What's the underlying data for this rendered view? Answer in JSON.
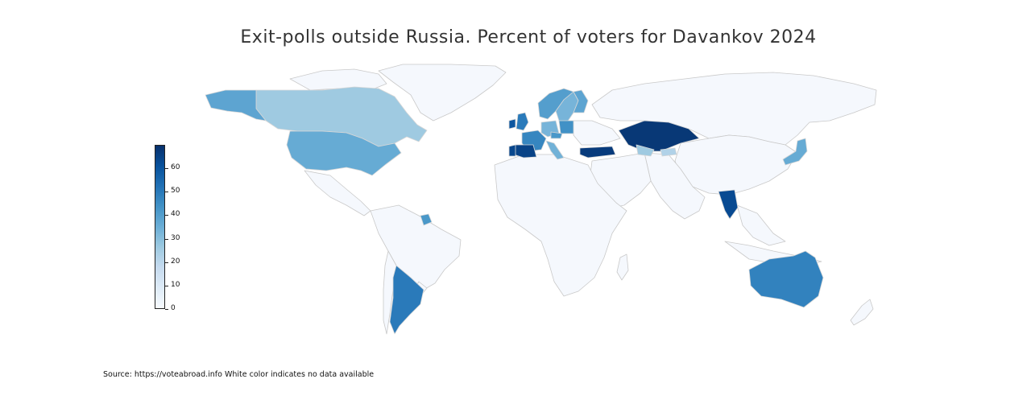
{
  "title": "Exit-polls outside Russia. Percent of voters for Davankov 2024",
  "source_note": "Source: https://voteabroad.info White color indicates no data available",
  "colors": {
    "ocean": "#ffffff",
    "no_data": "#f5f8fd",
    "border": "#c9c9c9",
    "scale_low": "#f7fbff",
    "scale_high": "#08306b"
  },
  "colorbar": {
    "min": 0,
    "max": 70,
    "ticks": [
      "0",
      "10",
      "20",
      "30",
      "40",
      "50",
      "60"
    ]
  },
  "chart_data": {
    "type": "choropleth",
    "metric": "Percent of voters for Davankov",
    "year": 2024,
    "range": [
      0,
      70
    ],
    "regions": [
      {
        "name": "Kazakhstan",
        "value": 68
      },
      {
        "name": "Turkey",
        "value": 67
      },
      {
        "name": "Spain",
        "value": 65
      },
      {
        "name": "Portugal",
        "value": 64
      },
      {
        "name": "Thailand",
        "value": 63
      },
      {
        "name": "Ireland",
        "value": 60
      },
      {
        "name": "United Kingdom",
        "value": 50
      },
      {
        "name": "Argentina",
        "value": 50
      },
      {
        "name": "Australia",
        "value": 48
      },
      {
        "name": "France",
        "value": 47
      },
      {
        "name": "Poland",
        "value": 44
      },
      {
        "name": "Czechia",
        "value": 42
      },
      {
        "name": "Norway",
        "value": 40
      },
      {
        "name": "Finland",
        "value": 38
      },
      {
        "name": "Alaska (United States)",
        "value": 38
      },
      {
        "name": "United States",
        "value": 36
      },
      {
        "name": "Japan",
        "value": 36
      },
      {
        "name": "Italy",
        "value": 34
      },
      {
        "name": "Sweden",
        "value": 33
      },
      {
        "name": "Germany",
        "value": 33
      },
      {
        "name": "Suriname",
        "value": 42
      },
      {
        "name": "Canada",
        "value": 26
      },
      {
        "name": "Uzbekistan",
        "value": 26
      },
      {
        "name": "Kyrgyzstan",
        "value": 22
      }
    ]
  }
}
